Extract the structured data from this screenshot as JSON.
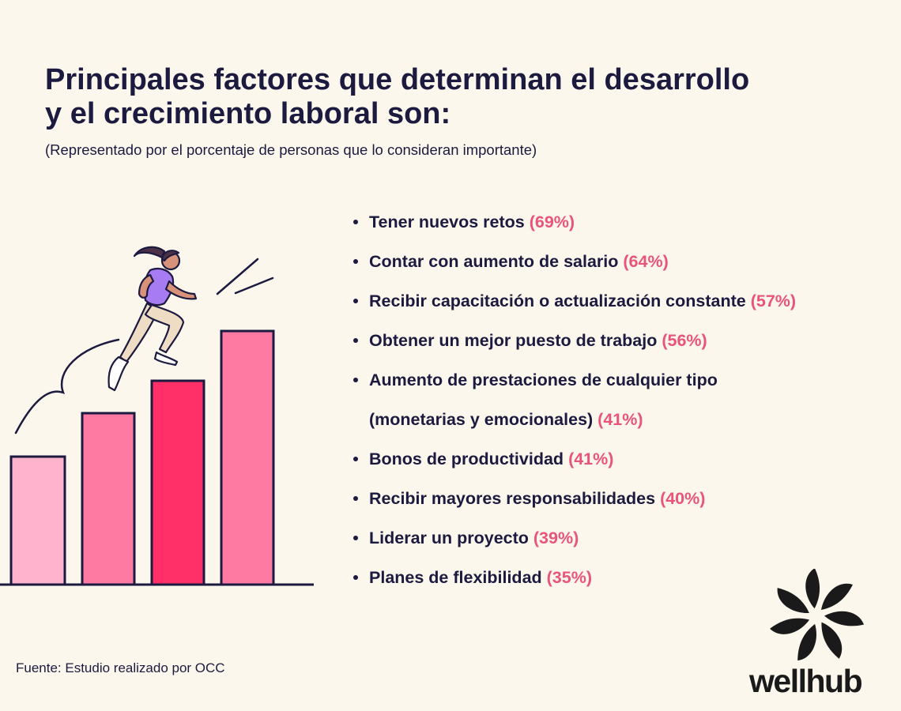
{
  "header": {
    "title": "Principales factores que determinan el desarrollo y el crecimiento laboral son:",
    "subtitle": "(Representado por el porcentaje de personas que lo consideran importante)"
  },
  "factors": [
    {
      "label": "Tener nuevos retos",
      "percent": "(69%)"
    },
    {
      "label": "Contar con aumento de salario",
      "percent": "(64%)"
    },
    {
      "label": "Recibir capacitación o actualización constante",
      "percent": "(57%)"
    },
    {
      "label": "Obtener un mejor puesto de trabajo",
      "percent": "(56%)"
    },
    {
      "label": "Aumento de prestaciones de cualquier tipo (monetarias y emocionales)",
      "percent": "(41%)"
    },
    {
      "label": "Bonos de productividad",
      "percent": "(41%)"
    },
    {
      "label": "Recibir mayores responsabilidades",
      "percent": "(40%)"
    },
    {
      "label": "Liderar un proyecto",
      "percent": "(39%)"
    },
    {
      "label": "Planes de flexibilidad",
      "percent": "(35%)"
    }
  ],
  "footer": {
    "source": "Fuente: Estudio realizado por OCC",
    "brand": "wellhub"
  },
  "colors": {
    "background": "#fbf7ec",
    "text": "#1c1a3f",
    "accent": "#e8547a",
    "bar_light": "#ffb3cc",
    "bar_mid": "#ff7aa2",
    "bar_dark": "#ff2f68"
  },
  "icons": {
    "illustration": "running-woman-on-bar-steps",
    "brand_logo": "wellhub-swirl-logo"
  }
}
